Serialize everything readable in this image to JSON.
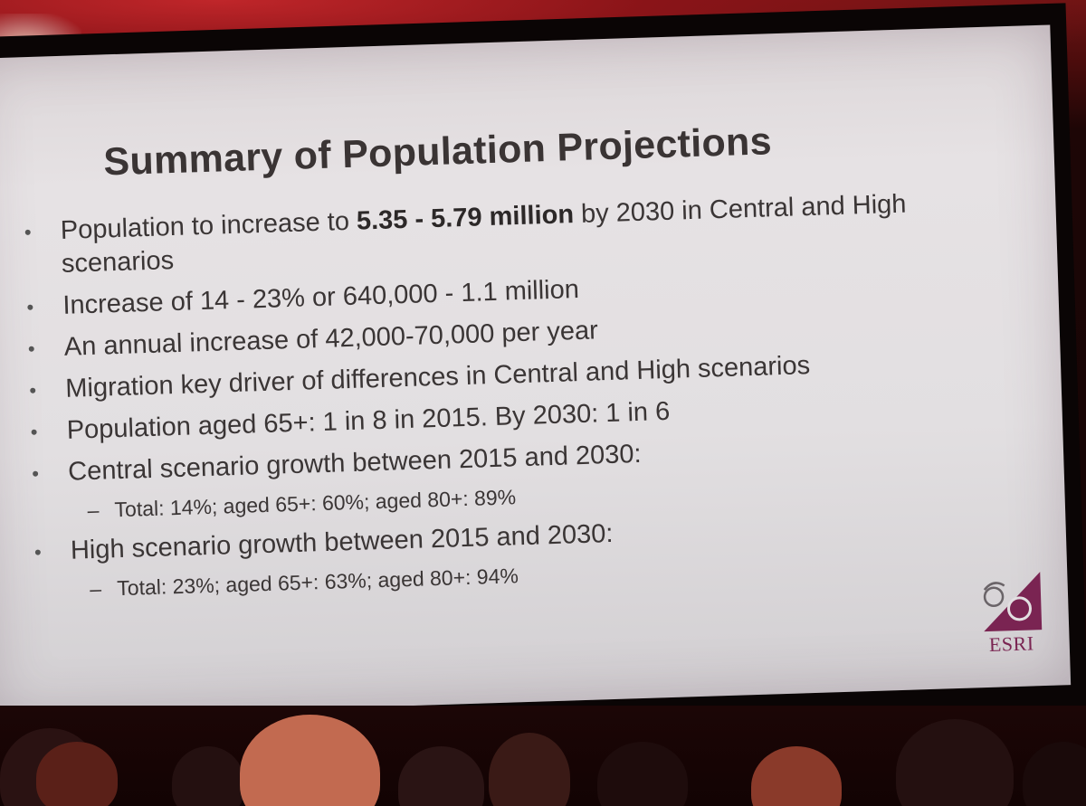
{
  "slide": {
    "title": "Summary of Population Projections",
    "bullets": [
      {
        "pre": "Population to increase to ",
        "bold": "5.35 - 5.79 million",
        "post": " by 2030 in Central and High scenarios"
      },
      {
        "text": "Increase of 14 - 23% or 640,000 - 1.1 million"
      },
      {
        "text": "An annual increase of 42,000-70,000 per year"
      },
      {
        "text": "Migration key driver of differences in Central and High scenarios"
      },
      {
        "text": "Population aged 65+:  1 in 8 in 2015. By 2030: 1 in 6"
      },
      {
        "text": "Central scenario growth between 2015 and 2030:",
        "sub": "Total: 14%; aged 65+: 60%; aged 80+: 89%"
      },
      {
        "text": "High scenario growth between 2015 and 2030:",
        "sub": "Total: 23%; aged 65+: 63%; aged 80+: 94%"
      }
    ],
    "bullet_marker": "•",
    "sub_marker": "–",
    "logo": {
      "text": "ESRI",
      "icon": "esri-triangle-logo-icon",
      "color": "#7a2452"
    }
  },
  "colors": {
    "slide_background": "#e2dfe1",
    "text": "#3a3535",
    "stage_red": "#c0262a"
  }
}
